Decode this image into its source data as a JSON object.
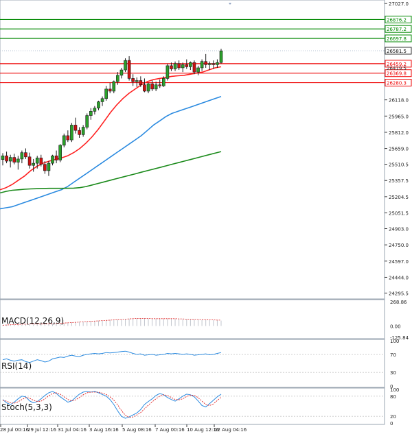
{
  "chart_data": {
    "type": "candlestick",
    "instrument_panel": {
      "price_ticks": [
        "27027.0",
        "26581.5",
        "26118.0",
        "25965.0",
        "25812.0",
        "25659.0",
        "25510.5",
        "25357.5",
        "25204.5",
        "25051.5",
        "24903.0",
        "24750.0",
        "24597.0",
        "24444.0",
        "24295.5"
      ],
      "price_range": [
        24240,
        27060
      ],
      "x_labels": [
        "28 Jul 00:16",
        "29 Jul 12:16",
        "31 Jul 04:16",
        "3 Aug 16:16",
        "5 Aug 08:16",
        "7 Aug 00:16",
        "10 Aug 12:16",
        "12 Aug 04:16"
      ],
      "resistance_levels": [
        {
          "price": 26876.2,
          "label": "26876.2",
          "color": "#008800"
        },
        {
          "price": 26787.2,
          "label": "26787.2",
          "color": "#008800"
        },
        {
          "price": 26697.8,
          "label": "26697.8",
          "color": "#008800"
        }
      ],
      "support_levels": [
        {
          "price": 26459.2,
          "label": "26459.2",
          "color": "#ee0000"
        },
        {
          "price": 26369.8,
          "label": "26369.8",
          "color": "#ee0000"
        },
        {
          "price": 26280.3,
          "label": "26280.3",
          "color": "#ee0000"
        }
      ],
      "current_price": {
        "price": 26581.5,
        "label": "26581.5"
      },
      "extra_price_label": {
        "price": 26419.5,
        "label": "26419.5"
      },
      "candles": [
        [
          25555,
          25615,
          25500,
          25590
        ],
        [
          25590,
          25630,
          25520,
          25540
        ],
        [
          25540,
          25600,
          25480,
          25575
        ],
        [
          25575,
          25610,
          25510,
          25530
        ],
        [
          25530,
          25590,
          25460,
          25560
        ],
        [
          25560,
          25640,
          25520,
          25620
        ],
        [
          25620,
          25660,
          25560,
          25580
        ],
        [
          25580,
          25620,
          25470,
          25500
        ],
        [
          25500,
          25560,
          25440,
          25520
        ],
        [
          25520,
          25590,
          25470,
          25570
        ],
        [
          25570,
          25600,
          25490,
          25510
        ],
        [
          25510,
          25540,
          25420,
          25450
        ],
        [
          25450,
          25540,
          25400,
          25520
        ],
        [
          25520,
          25600,
          25500,
          25590
        ],
        [
          25590,
          25640,
          25520,
          25550
        ],
        [
          25550,
          25700,
          25530,
          25690
        ],
        [
          25690,
          25800,
          25670,
          25780
        ],
        [
          25780,
          25830,
          25720,
          25740
        ],
        [
          25740,
          25900,
          25720,
          25880
        ],
        [
          25880,
          25950,
          25800,
          25830
        ],
        [
          25830,
          25860,
          25760,
          25790
        ],
        [
          25790,
          25880,
          25770,
          25860
        ],
        [
          25860,
          25990,
          25840,
          25970
        ],
        [
          25970,
          26040,
          25930,
          26010
        ],
        [
          26010,
          26060,
          25980,
          26040
        ],
        [
          26040,
          26110,
          26020,
          26100
        ],
        [
          26100,
          26150,
          26060,
          26130
        ],
        [
          26130,
          26250,
          26110,
          26220
        ],
        [
          26220,
          26280,
          26180,
          26200
        ],
        [
          26200,
          26300,
          26180,
          26290
        ],
        [
          26290,
          26380,
          26260,
          26350
        ],
        [
          26350,
          26420,
          26320,
          26400
        ],
        [
          26400,
          26510,
          26380,
          26490
        ],
        [
          26490,
          26530,
          26300,
          26320
        ],
        [
          26320,
          26360,
          26250,
          26290
        ],
        [
          26290,
          26330,
          26240,
          26300
        ],
        [
          26300,
          26340,
          26240,
          26260
        ],
        [
          26260,
          26320,
          26190,
          26200
        ],
        [
          26200,
          26280,
          26180,
          26270
        ],
        [
          26270,
          26300,
          26200,
          26220
        ],
        [
          26220,
          26290,
          26200,
          26260
        ],
        [
          26260,
          26310,
          26230,
          26250
        ],
        [
          26250,
          26340,
          26240,
          26320
        ],
        [
          26320,
          26460,
          26300,
          26440
        ],
        [
          26440,
          26470,
          26390,
          26410
        ],
        [
          26410,
          26480,
          26390,
          26460
        ],
        [
          26460,
          26490,
          26400,
          26420
        ],
        [
          26420,
          26470,
          26380,
          26450
        ],
        [
          26450,
          26500,
          26410,
          26430
        ],
        [
          26430,
          26480,
          26400,
          26470
        ],
        [
          26470,
          26490,
          26360,
          26380
        ],
        [
          26380,
          26440,
          26350,
          26420
        ],
        [
          26420,
          26500,
          26390,
          26480
        ],
        [
          26480,
          26550,
          26420,
          26450
        ],
        [
          26450,
          26480,
          26400,
          26460
        ],
        [
          26460,
          26490,
          26410,
          26450
        ],
        [
          26450,
          26500,
          26420,
          26470
        ],
        [
          26470,
          26600,
          26460,
          26580
        ]
      ],
      "moving_averages": [
        {
          "color": "#ff2020",
          "values": [
            25270,
            25290,
            25320,
            25360,
            25400,
            25450,
            25490,
            25520,
            25540,
            25555,
            25570,
            25590,
            25620,
            25660,
            25710,
            25770,
            25840,
            25920,
            26000,
            26070,
            26130,
            26180,
            26220,
            26260,
            26290,
            26310,
            26320,
            26330,
            26340,
            26345,
            26350,
            26360,
            26370,
            26380,
            26400,
            26420,
            26430
          ]
        },
        {
          "color": "#2a8ae0",
          "values": [
            25090,
            25100,
            25110,
            25130,
            25150,
            25170,
            25190,
            25210,
            25230,
            25250,
            25270,
            25300,
            25340,
            25380,
            25420,
            25460,
            25500,
            25540,
            25580,
            25620,
            25660,
            25700,
            25740,
            25780,
            25830,
            25880,
            25920,
            25960,
            25990,
            26010,
            26030,
            26050,
            26070,
            26090,
            26110,
            26130,
            26150
          ]
        },
        {
          "color": "#1a8a1a",
          "values": [
            25240,
            25255,
            25265,
            25270,
            25275,
            25278,
            25280,
            25282,
            25283,
            25283,
            25283,
            25284,
            25285,
            25290,
            25300,
            25315,
            25330,
            25345,
            25360,
            25375,
            25390,
            25405,
            25420,
            25435,
            25450,
            25465,
            25480,
            25495,
            25510,
            25525,
            25540,
            25555,
            25570,
            25585,
            25600,
            25615,
            25630
          ]
        }
      ]
    },
    "macd": {
      "label": "MACD(12,26,9)",
      "ticks": [
        "268.86",
        "0.00",
        "-125.84"
      ],
      "range": [
        -125.84,
        268.86
      ],
      "histogram": [
        0.03,
        0.05,
        0.06,
        0.06,
        0.07,
        0.07,
        0.08,
        0.08,
        0.08,
        0.08,
        0.09,
        0.09,
        0.09,
        0.1,
        0.11,
        0.12,
        0.13,
        0.14,
        0.15,
        0.16,
        0.17,
        0.18,
        0.19,
        0.2,
        0.21,
        0.22,
        0.23,
        0.24,
        0.25,
        0.26,
        0.27,
        0.28,
        0.29,
        0.3,
        0.31,
        0.32,
        0.32,
        0.32,
        0.31,
        0.3,
        0.3,
        0.3,
        0.3,
        0.3,
        0.3,
        0.29,
        0.29,
        0.28,
        0.28,
        0.27,
        0.27,
        0.26,
        0.25,
        0.25,
        0.24,
        0.24,
        0.23,
        0.22
      ],
      "signal": [
        0.03,
        0.04,
        0.05,
        0.06,
        0.06,
        0.07,
        0.07,
        0.08,
        0.08,
        0.08,
        0.08,
        0.09,
        0.09,
        0.09,
        0.1,
        0.11,
        0.12,
        0.13,
        0.14,
        0.15,
        0.16,
        0.17,
        0.18,
        0.19,
        0.2,
        0.21,
        0.22,
        0.23,
        0.24,
        0.25,
        0.26,
        0.27,
        0.28,
        0.29,
        0.3,
        0.31,
        0.31,
        0.31,
        0.31,
        0.3,
        0.3,
        0.3,
        0.3,
        0.3,
        0.3,
        0.3,
        0.29,
        0.29,
        0.28,
        0.28,
        0.27,
        0.27,
        0.26,
        0.26,
        0.25,
        0.25,
        0.24,
        0.24
      ]
    },
    "rsi": {
      "label": "RSI(14)",
      "ticks": [
        "100",
        "70",
        "30",
        "0"
      ],
      "values": [
        58,
        60,
        57,
        55,
        57,
        58,
        54,
        52,
        55,
        58,
        56,
        53,
        55,
        60,
        62,
        64,
        63,
        66,
        68,
        66,
        65,
        68,
        70,
        71,
        72,
        71,
        72,
        74,
        73,
        74,
        75,
        76,
        77,
        75,
        72,
        70,
        71,
        68,
        69,
        70,
        68,
        69,
        70,
        72,
        71,
        72,
        71,
        70,
        71,
        70,
        68,
        69,
        70,
        71,
        69,
        70,
        72,
        74
      ]
    },
    "stoch": {
      "label": "Stoch(5,3,3)",
      "ticks": [
        "100",
        "80",
        "20",
        "0"
      ],
      "k": [
        70,
        60,
        55,
        62,
        72,
        80,
        78,
        66,
        60,
        64,
        72,
        82,
        90,
        94,
        88,
        78,
        70,
        62,
        66,
        76,
        86,
        92,
        94,
        92,
        94,
        90,
        85,
        80,
        70,
        55,
        36,
        20,
        14,
        18,
        24,
        30,
        40,
        55,
        64,
        72,
        82,
        88,
        84,
        76,
        70,
        65,
        72,
        80,
        86,
        84,
        78,
        66,
        52,
        48,
        58,
        68,
        78,
        86
      ],
      "d": [
        68,
        65,
        60,
        59,
        63,
        70,
        76,
        74,
        68,
        64,
        65,
        72,
        81,
        88,
        90,
        86,
        78,
        70,
        66,
        69,
        76,
        84,
        90,
        92,
        92,
        92,
        89,
        85,
        78,
        68,
        54,
        37,
        23,
        17,
        18,
        24,
        31,
        42,
        53,
        63,
        72,
        80,
        84,
        82,
        76,
        70,
        69,
        72,
        79,
        83,
        82,
        76,
        65,
        55,
        52,
        57,
        67,
        77
      ]
    }
  }
}
